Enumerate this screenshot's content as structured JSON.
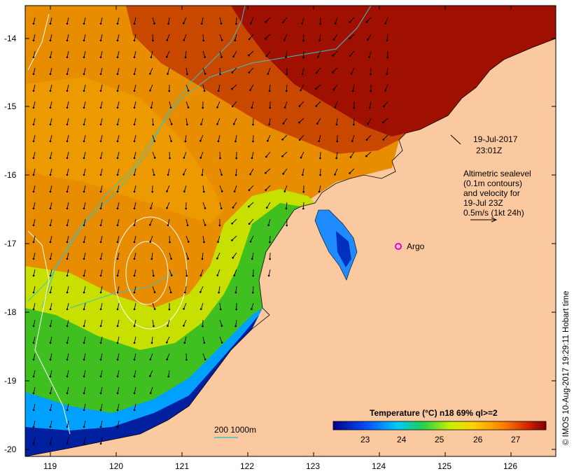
{
  "annotation": {
    "date": "19-Jul-2017",
    "time": "23:01Z",
    "altimetry_lines": [
      "Altimetric sealevel",
      "(0.1m contours)",
      "and velocity for",
      "19-Jul 23Z",
      "0.5m/s (1kt 24h)"
    ]
  },
  "marker": {
    "label": "Argo",
    "color": "#e000e0"
  },
  "bathymetry_legend": "200  1000m",
  "colorbar": {
    "title": "Temperature (°C) n18 69% ql>=2",
    "ticks": [
      "23",
      "24",
      "25",
      "26",
      "27"
    ]
  },
  "x_axis": {
    "ticks": [
      "119",
      "120",
      "121",
      "122",
      "123",
      "124",
      "125",
      "126"
    ]
  },
  "y_axis": {
    "ticks": [
      "-14",
      "-15",
      "-16",
      "-17",
      "-18",
      "-19",
      "-20"
    ]
  },
  "credit": "© IMOS 10-Aug-2017 19:29:11 Hobart time",
  "colors": {
    "land": "#fbc9a0",
    "warm": "#a01000",
    "orange": "#e88c00",
    "green": "#40c020",
    "cold": "#0020a0",
    "contour_isobath": "#40c0c0",
    "contour_sealevel": "#ffffff"
  }
}
